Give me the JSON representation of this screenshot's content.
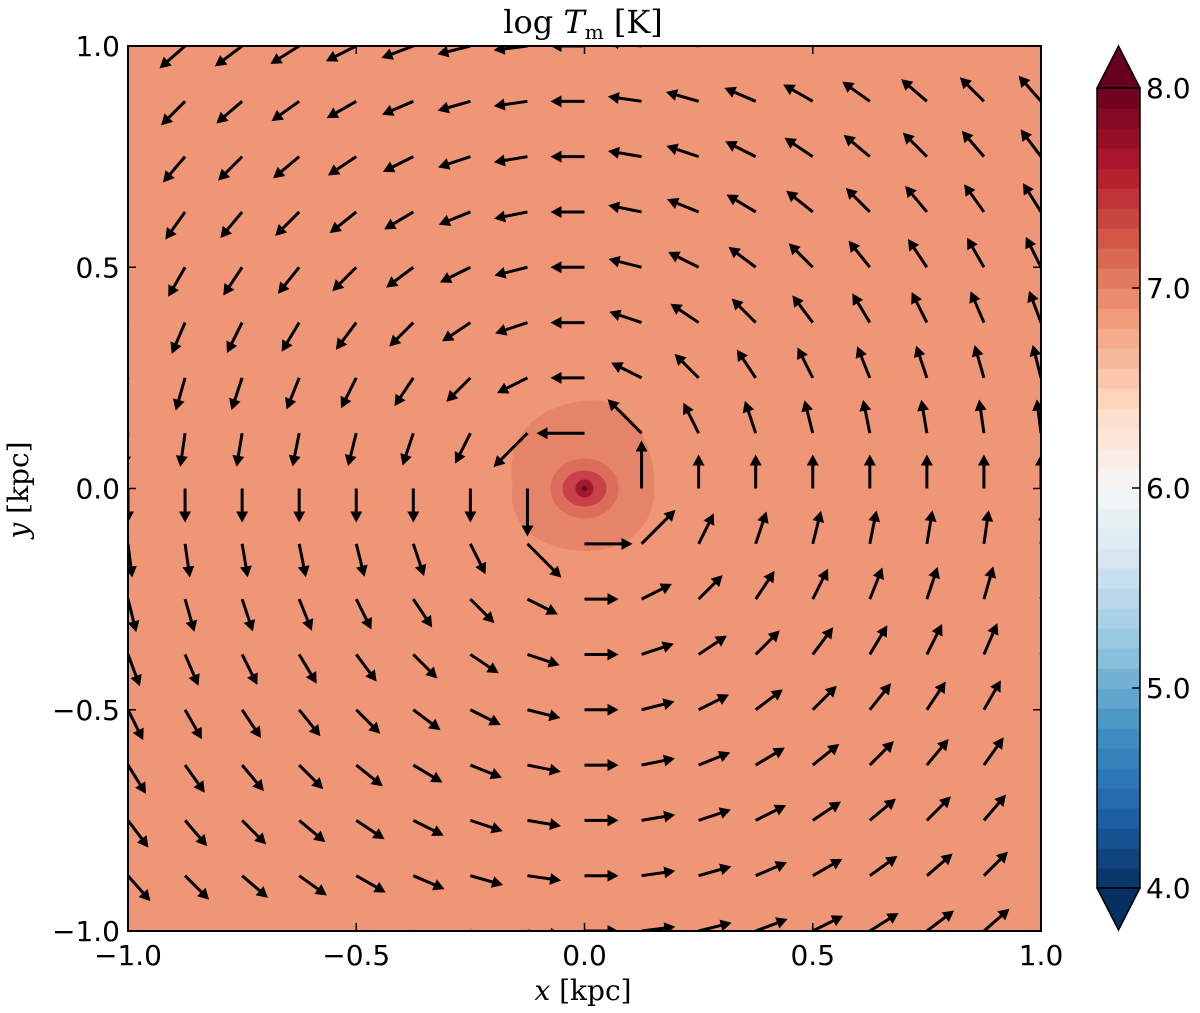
{
  "chart_data": {
    "type": "quiver-contour",
    "title": "log T_m [K]",
    "xlabel": "x [kpc]",
    "ylabel": "y [kpc]",
    "xlim": [
      -1.0,
      1.0
    ],
    "ylim": [
      -1.0,
      1.0
    ],
    "xticks": [
      "−1.0",
      "−0.5",
      "0.0",
      "0.5",
      "1.0"
    ],
    "yticks": [
      "−1.0",
      "−0.5",
      "0.0",
      "0.5",
      "1.0"
    ],
    "grid": false,
    "background_log_T": 6.9,
    "background_color": "#ef9676",
    "core_contours": [
      {
        "level": 7.0,
        "color": "#e58469"
      },
      {
        "level": 7.2,
        "color": "#dc6d5b"
      },
      {
        "level": 7.5,
        "color": "#c8404a"
      },
      {
        "level": 7.8,
        "color": "#a0192c"
      }
    ],
    "velocity_field": {
      "pattern": "counter-clockwise rotation about origin",
      "grid_spacing_kpc": 0.125,
      "color": "#000000"
    },
    "colorbar": {
      "min": 4.0,
      "max": 8.0,
      "ticks": [
        "4.0",
        "5.0",
        "6.0",
        "7.0",
        "8.0"
      ],
      "extend": "both",
      "colormap": "RdBu_r"
    }
  }
}
